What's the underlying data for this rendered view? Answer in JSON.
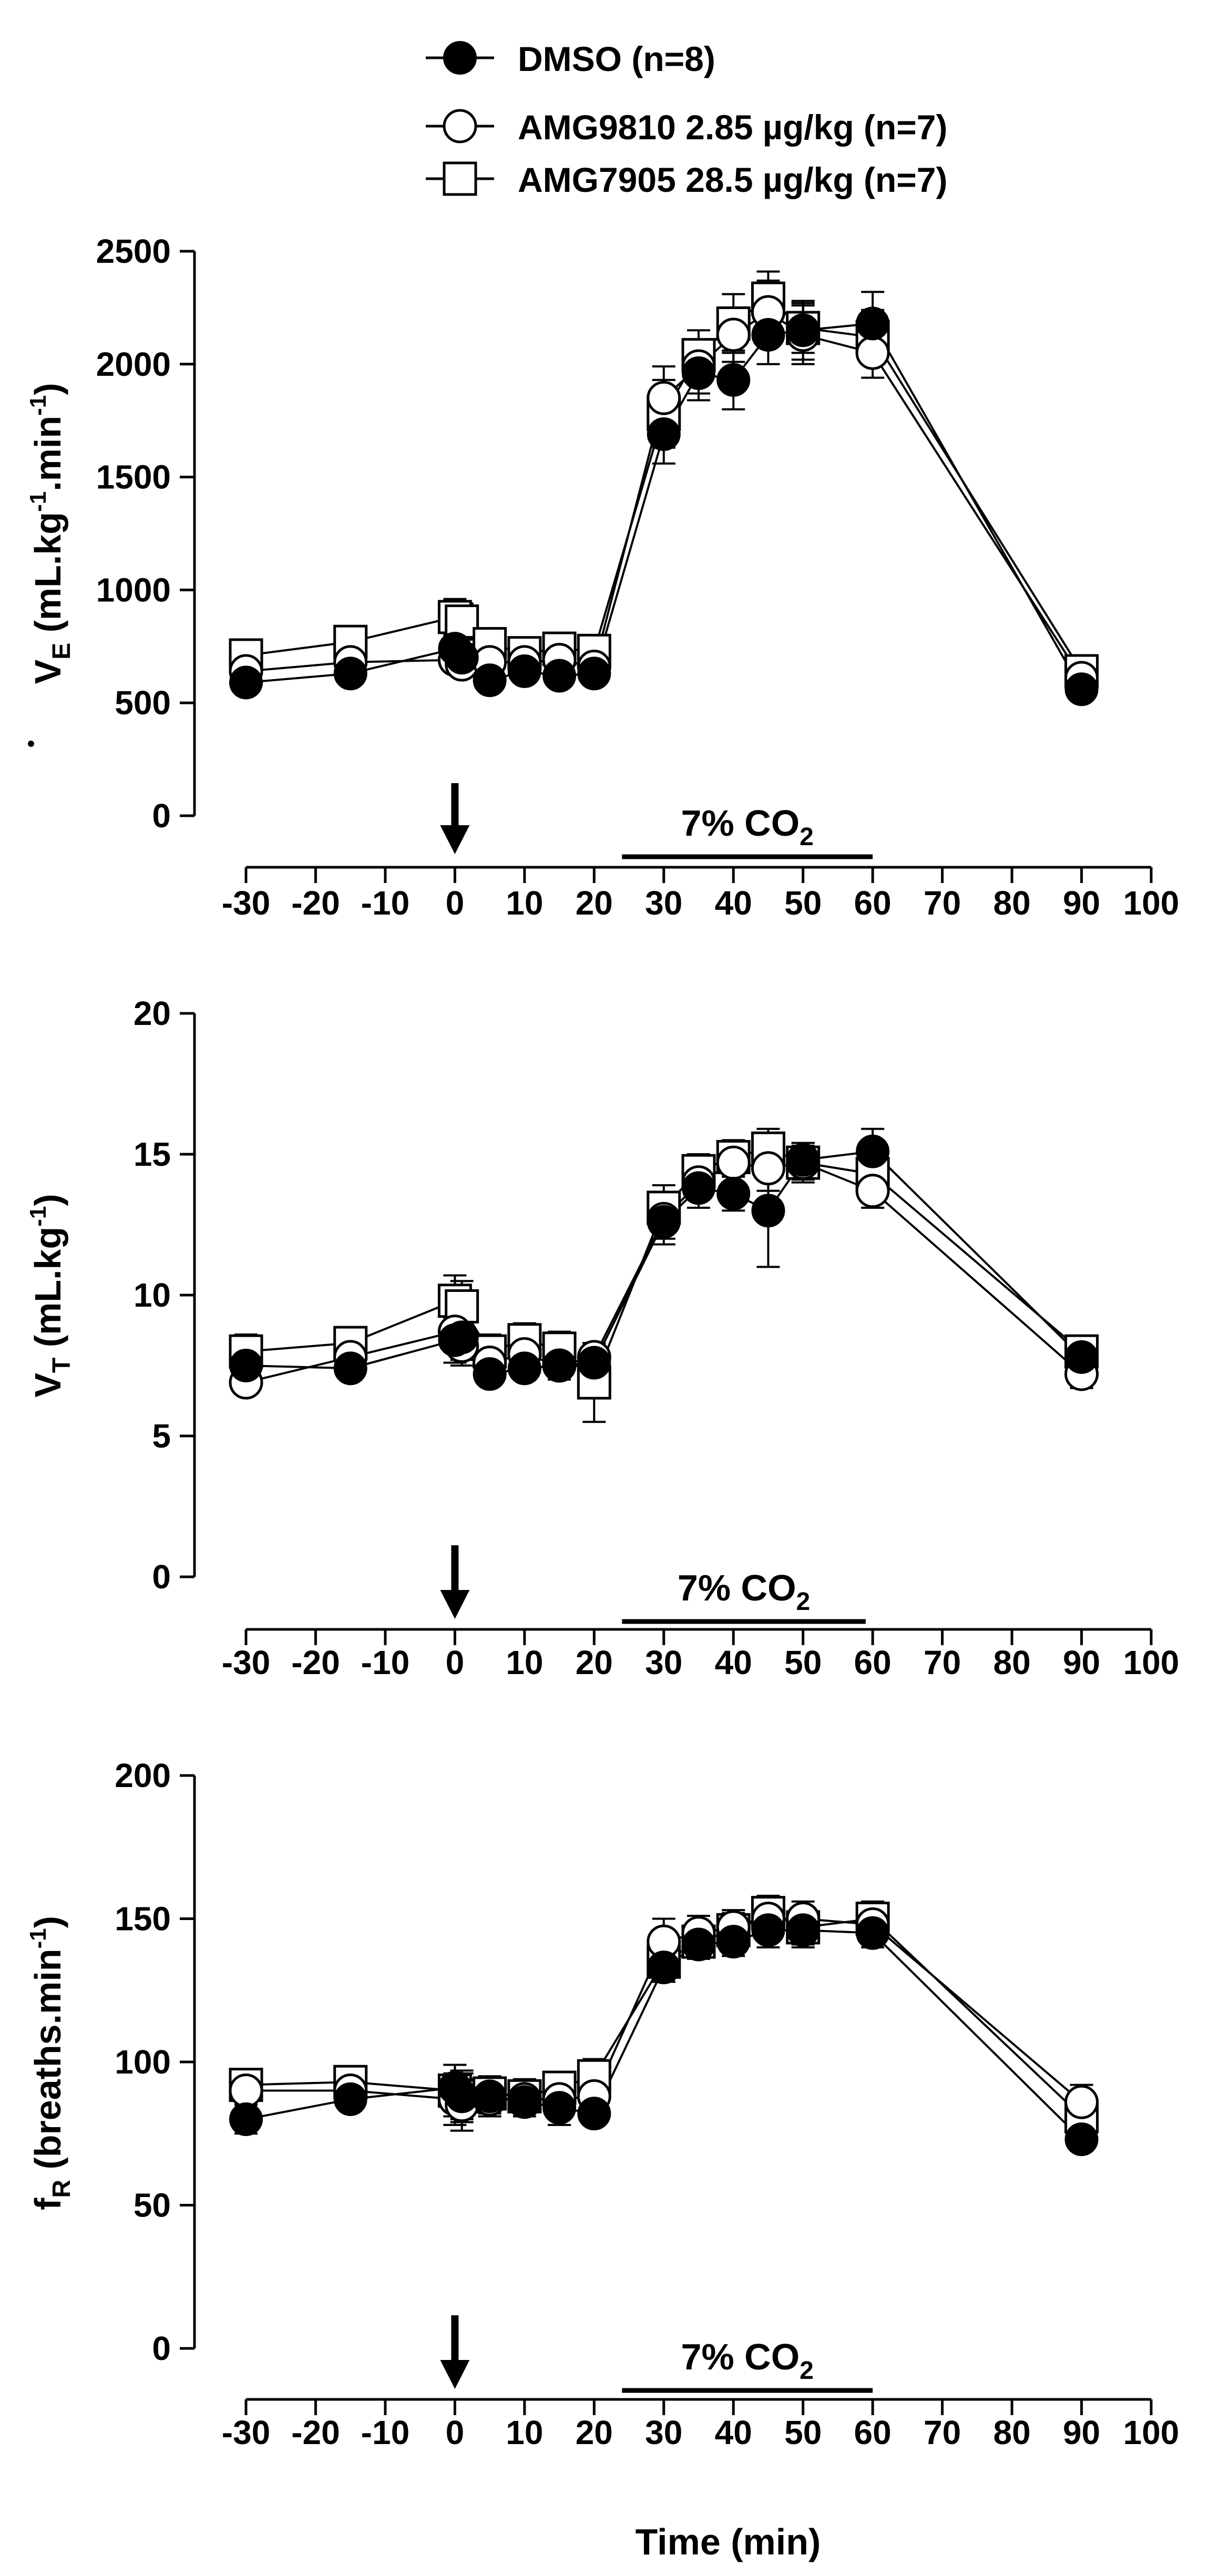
{
  "legend": {
    "entries": [
      {
        "key": "dmso",
        "label": "DMSO (n=8)",
        "marker": "filled-circle"
      },
      {
        "key": "amg9810",
        "label": "AMG9810 2.85 µg/kg (n=7)",
        "marker": "open-circle"
      },
      {
        "key": "amg7905",
        "label": "AMG7905 28.5 µg/kg (n=7)",
        "marker": "open-square"
      }
    ]
  },
  "chart_data": [
    {
      "type": "line",
      "id": "ve",
      "ylabel": {
        "main": "V",
        "sub": "E",
        "rest": " (mL.kg",
        "sup1": "-1",
        "mid": ".min",
        "sup2": "-1",
        "end": ")"
      },
      "xlabel": "",
      "ylim": [
        0,
        2500
      ],
      "yticks": [
        0,
        500,
        1000,
        1500,
        2000,
        2500
      ],
      "xlim": [
        -30,
        100
      ],
      "xticks": [
        -30,
        -20,
        -10,
        0,
        10,
        20,
        30,
        40,
        50,
        60,
        70,
        80,
        90,
        100
      ],
      "annotation": {
        "text": "7% CO",
        "sub": "2",
        "range": [
          24,
          60
        ]
      },
      "injection_arrow_at": 0,
      "x": [
        -30,
        -15,
        0,
        1,
        5,
        10,
        15,
        20,
        30,
        35,
        40,
        45,
        50,
        60,
        90
      ],
      "series": [
        {
          "name": "DMSO (n=8)",
          "marker": "filled-circle",
          "values": [
            590,
            630,
            740,
            700,
            600,
            640,
            620,
            630,
            1690,
            1960,
            1930,
            2130,
            2150,
            2180,
            560
          ],
          "errors": [
            30,
            40,
            60,
            60,
            40,
            40,
            40,
            40,
            130,
            120,
            130,
            130,
            130,
            140,
            30
          ]
        },
        {
          "name": "AMG9810 2.85 µg/kg (n=7)",
          "marker": "open-circle",
          "values": [
            640,
            680,
            690,
            670,
            680,
            680,
            690,
            660,
            1850,
            1990,
            2130,
            2230,
            2130,
            2050,
            610
          ],
          "errors": [
            40,
            40,
            50,
            50,
            40,
            40,
            40,
            40,
            140,
            120,
            120,
            140,
            130,
            110,
            40
          ]
        },
        {
          "name": "AMG7905 28.5 µg/kg (n=7)",
          "marker": "open-square",
          "values": [
            710,
            770,
            880,
            860,
            760,
            720,
            740,
            730,
            1780,
            2040,
            2180,
            2290,
            2160,
            2120,
            640
          ],
          "errors": [
            40,
            50,
            80,
            80,
            60,
            50,
            50,
            50,
            150,
            110,
            130,
            120,
            110,
            120,
            40
          ]
        }
      ]
    },
    {
      "type": "line",
      "id": "vt",
      "ylabel": {
        "main": "V",
        "sub": "T",
        "rest": " (mL.kg",
        "sup1": "-1",
        "end": ")"
      },
      "xlabel": "",
      "ylim": [
        0,
        20
      ],
      "yticks": [
        0,
        5,
        10,
        15,
        20
      ],
      "xlim": [
        -30,
        100
      ],
      "xticks": [
        -30,
        -20,
        -10,
        0,
        10,
        20,
        30,
        40,
        50,
        60,
        70,
        80,
        90,
        100
      ],
      "annotation": {
        "text": "7% CO",
        "sub": "2",
        "range": [
          24,
          59
        ]
      },
      "injection_arrow_at": 0,
      "x": [
        -30,
        -15,
        0,
        1,
        5,
        10,
        15,
        20,
        30,
        35,
        40,
        45,
        50,
        60,
        90
      ],
      "series": [
        {
          "name": "DMSO (n=8)",
          "marker": "filled-circle",
          "values": [
            7.5,
            7.4,
            8.4,
            8.5,
            7.2,
            7.4,
            7.5,
            7.6,
            12.6,
            13.8,
            13.6,
            13.0,
            14.8,
            15.1,
            7.8
          ],
          "errors": [
            0.4,
            0.4,
            0.8,
            0.8,
            0.4,
            0.4,
            0.4,
            0.5,
            0.8,
            0.7,
            0.6,
            2.0,
            0.6,
            0.8,
            0.5
          ]
        },
        {
          "name": "AMG9810 2.85 µg/kg (n=7)",
          "marker": "open-circle",
          "values": [
            6.9,
            7.8,
            8.7,
            8.2,
            7.6,
            7.9,
            7.5,
            7.8,
            12.7,
            14.0,
            14.7,
            14.5,
            14.7,
            13.7,
            7.2
          ],
          "errors": [
            0.4,
            0.4,
            0.7,
            0.7,
            0.5,
            0.5,
            0.5,
            0.5,
            0.7,
            0.6,
            0.7,
            0.8,
            0.7,
            0.6,
            0.5
          ]
        },
        {
          "name": "AMG7905 28.5 µg/kg (n=7)",
          "marker": "open-square",
          "values": [
            8.0,
            8.3,
            9.8,
            9.6,
            8.0,
            8.4,
            8.1,
            6.9,
            13.1,
            14.4,
            14.9,
            15.2,
            14.7,
            14.3,
            8.0
          ],
          "errors": [
            0.6,
            0.5,
            0.9,
            0.9,
            0.6,
            0.6,
            0.6,
            1.4,
            0.8,
            0.6,
            0.6,
            0.7,
            0.6,
            0.6,
            0.5
          ]
        }
      ]
    },
    {
      "type": "line",
      "id": "fr",
      "ylabel": {
        "main": "f",
        "sub": "R",
        "rest": " (breaths.min",
        "sup1": "-1",
        "end": ")"
      },
      "xlabel": "Time (min)",
      "ylim": [
        0,
        200
      ],
      "yticks": [
        0,
        50,
        100,
        150,
        200
      ],
      "xlim": [
        -30,
        100
      ],
      "xticks": [
        -30,
        -20,
        -10,
        0,
        10,
        20,
        30,
        40,
        50,
        60,
        70,
        80,
        90,
        100
      ],
      "annotation": {
        "text": "7% CO",
        "sub": "2",
        "range": [
          24,
          60
        ]
      },
      "injection_arrow_at": 0,
      "x": [
        -30,
        -15,
        0,
        1,
        5,
        10,
        15,
        20,
        30,
        35,
        40,
        45,
        50,
        60,
        90
      ],
      "series": [
        {
          "name": "DMSO (n=8)",
          "marker": "filled-circle",
          "values": [
            80,
            87,
            91,
            88,
            88,
            86,
            84,
            82,
            133,
            141,
            142,
            146,
            146,
            145,
            73
          ],
          "errors": [
            5,
            4,
            8,
            8,
            6,
            5,
            6,
            4,
            5,
            5,
            5,
            6,
            6,
            5,
            4
          ]
        },
        {
          "name": "AMG9810 2.85 µg/kg (n=7)",
          "marker": "open-circle",
          "values": [
            90,
            90,
            87,
            85,
            87,
            87,
            87,
            88,
            142,
            145,
            147,
            150,
            150,
            148,
            86
          ],
          "errors": [
            5,
            5,
            9,
            9,
            6,
            5,
            5,
            5,
            8,
            6,
            6,
            7,
            6,
            6,
            6
          ]
        },
        {
          "name": "AMG7905 28.5 µg/kg (n=7)",
          "marker": "open-square",
          "values": [
            92,
            93,
            90,
            88,
            89,
            88,
            91,
            95,
            135,
            142,
            146,
            152,
            147,
            150,
            81
          ],
          "errors": [
            5,
            5,
            9,
            9,
            6,
            6,
            5,
            6,
            7,
            6,
            6,
            6,
            6,
            6,
            6
          ]
        }
      ]
    }
  ]
}
